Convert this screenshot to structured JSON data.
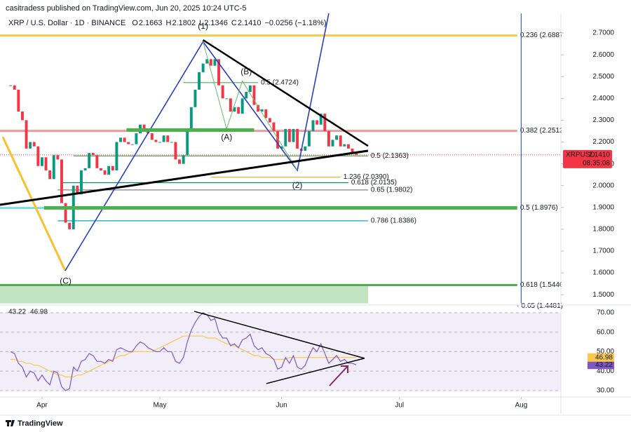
{
  "header": {
    "publisher": "casitradess published on TradingView.com, Jun 20, 2025 10:24 UTC-5",
    "symbol": "XRP / U.S. Dollar · 1D · BINANCE",
    "ohlc": [
      {
        "k": "O",
        "v": "2.1663"
      },
      {
        "k": "H",
        "v": "2.1802"
      },
      {
        "k": "L",
        "v": "2.1346"
      },
      {
        "k": "C",
        "v": "2.1410"
      }
    ],
    "change": "−0.0256 (−1.18%)"
  },
  "chart_data": [
    {
      "type": "candlestick",
      "x": [
        -8,
        -7,
        -6,
        -5,
        -4,
        -3,
        -2,
        -1,
        0,
        1,
        2,
        3,
        4,
        5,
        6,
        7,
        8,
        9,
        10,
        11,
        12,
        13,
        14,
        15,
        16,
        17,
        18,
        19,
        20,
        21,
        22,
        23,
        24,
        25,
        26,
        27,
        28,
        29,
        30,
        31,
        32,
        33,
        34,
        35,
        36,
        37,
        38,
        39,
        40,
        41,
        42,
        43,
        44,
        45,
        46,
        47,
        48,
        49,
        50,
        51,
        52,
        53,
        54,
        55,
        56,
        57,
        58,
        59,
        60,
        61,
        62,
        63,
        64,
        65,
        66,
        67,
        68,
        69,
        70,
        71,
        72,
        73,
        74,
        75,
        76,
        77,
        78,
        79,
        80
      ],
      "close": [
        2.46,
        2.44,
        2.34,
        2.3,
        2.17,
        2.2,
        2.18,
        2.09,
        2.13,
        2.07,
        2.03,
        2.14,
        2.12,
        1.92,
        1.83,
        1.8,
        2.0,
        1.96,
        2.07,
        2.08,
        2.15,
        2.14,
        2.08,
        2.07,
        2.05,
        2.09,
        2.07,
        2.2,
        2.22,
        2.2,
        2.19,
        2.19,
        2.24,
        2.28,
        2.26,
        2.24,
        2.21,
        2.2,
        2.2,
        2.23,
        2.2,
        2.2,
        2.12,
        2.1,
        2.14,
        2.26,
        2.36,
        2.44,
        2.52,
        2.56,
        2.58,
        2.55,
        2.58,
        2.46,
        2.4,
        2.4,
        2.34,
        2.36,
        2.33,
        2.4,
        2.43,
        2.46,
        2.37,
        2.34,
        2.35,
        2.31,
        2.29,
        2.25,
        2.17,
        2.18,
        2.26,
        2.2,
        2.26,
        2.17,
        2.16,
        2.18,
        2.25,
        2.3,
        2.28,
        2.33,
        2.25,
        2.18,
        2.21,
        2.23,
        2.18,
        2.19,
        2.17,
        2.15,
        2.141
      ],
      "up_color": "#089981",
      "down_color": "#f23645",
      "xlim": [
        -10.7,
        132.1
      ],
      "xticks": [
        {
          "value": 0,
          "label": "Apr"
        },
        {
          "value": 30,
          "label": "May"
        },
        {
          "value": 61,
          "label": "Jun"
        },
        {
          "value": 91,
          "label": "Jul"
        },
        {
          "value": 122,
          "label": "Aug"
        }
      ],
      "ylim": [
        1.462,
        2.787
      ],
      "yticks": [
        {
          "value": 2.7,
          "label": "2.7000"
        },
        {
          "value": 2.6,
          "label": "2.6000"
        },
        {
          "value": 2.5,
          "label": "2.5000"
        },
        {
          "value": 2.4,
          "label": "2.4000"
        },
        {
          "value": 2.3,
          "label": "2.3000"
        },
        {
          "value": 2.2,
          "label": "2.2000"
        },
        {
          "value": 2.1,
          "label": "2.1000"
        },
        {
          "value": 2.0,
          "label": "2.0000"
        },
        {
          "value": 1.9,
          "label": "1.9000"
        },
        {
          "value": 1.8,
          "label": "1.8000"
        },
        {
          "value": 1.7,
          "label": "1.7000"
        },
        {
          "value": 1.6,
          "label": "1.6000"
        },
        {
          "value": 1.5,
          "label": "1.5000"
        }
      ],
      "last_price": {
        "symbol": "XRPUSD",
        "value": 2.141,
        "label": "2.1410",
        "countdown": "08:35:08",
        "color": "#f23645"
      },
      "levels": [
        {
          "label": "0.236 (2.6887)",
          "value": 2.6887,
          "color": "#f9c74f",
          "from": -10.7,
          "to": 121,
          "width": 3
        },
        {
          "label": "0.5 (2.4724)",
          "value": 2.4724,
          "color": "#4caf50",
          "from": 36,
          "to": 55,
          "width": 1.2
        },
        {
          "label": "0.382 (2.2512)",
          "value": 2.2512,
          "color": "#ef9a9a",
          "from": -10.7,
          "to": 121,
          "width": 3
        },
        {
          "label": "0.5 (2.1363)",
          "value": 2.1363,
          "color": "#43a047",
          "from": 8,
          "to": 83,
          "width": 1.2
        },
        {
          "label": "1.236 (2.0390)",
          "value": 2.039,
          "color": "#f9a825",
          "from": 43,
          "to": 76,
          "width": 1.2
        },
        {
          "label": "0.618 (2.0135)",
          "value": 2.0135,
          "color": "#00897b",
          "from": 5,
          "to": 78,
          "width": 1.2
        },
        {
          "label": "0.65 (1.9802)",
          "value": 1.9802,
          "color": "#616161",
          "from": 4,
          "to": 83,
          "width": 1
        },
        {
          "label": "0.5 (1.8976)",
          "value": 1.8976,
          "color": "#80deea",
          "from": -10.7,
          "to": 121,
          "width": 3
        },
        {
          "label": "0.786 (1.8386)",
          "value": 1.8386,
          "color": "#00acc1",
          "from": 4,
          "to": 83,
          "width": 1.2
        },
        {
          "label": "0.618 (1.5440)",
          "value": 1.544,
          "color": "#4caf50",
          "from": -10.7,
          "to": 121,
          "width": 3
        },
        {
          "label": "0.65 (1.4481)",
          "value": 1.4481,
          "color": "#3f51b5",
          "from": 121,
          "to": 121.3,
          "width": 1
        }
      ],
      "trendlines": [
        {
          "color": "#fbc02d",
          "width": 3,
          "points": [
            [
              -10,
              2.224
            ],
            [
              5.9,
              1.61
            ]
          ]
        },
        {
          "color": "#2a3fbf",
          "width": 1.6,
          "points": [
            [
              5.9,
              1.61
            ],
            [
              41,
              2.66
            ],
            [
              65,
              2.07
            ],
            [
              73,
              2.79
            ]
          ]
        },
        {
          "color": "#66bb6a",
          "width": 1,
          "points": [
            [
              41,
              2.66
            ],
            [
              47,
              2.26
            ],
            [
              51,
              2.48
            ],
            [
              65,
              2.07
            ]
          ]
        },
        {
          "color": "#4caf50",
          "width": 5,
          "points": [
            [
              0.5,
              1.898
            ],
            [
              121,
              1.898
            ]
          ]
        },
        {
          "color": "#4caf50",
          "width": 5,
          "points": [
            [
              21.5,
              2.255
            ],
            [
              54,
              2.255
            ]
          ]
        },
        {
          "color": "#2962ff",
          "width": 1.2,
          "points": [
            [
              122,
              2.79
            ],
            [
              122,
              1.46
            ]
          ]
        },
        {
          "color": "#000000",
          "width": 3,
          "points": [
            [
              -10.7,
              1.912
            ],
            [
              83,
              2.16
            ]
          ]
        },
        {
          "color": "#000000",
          "width": 2.5,
          "points": [
            [
              41,
              2.668
            ],
            [
              83,
              2.182
            ]
          ]
        }
      ],
      "zones": [
        {
          "from": -10.7,
          "to": 83,
          "top": 1.549,
          "bottom": 1.46,
          "color": "rgba(76,175,80,0.35)"
        }
      ],
      "wave_labels": [
        {
          "text": "(1)",
          "x": 41,
          "price": 2.73,
          "color": "#1e3fbf"
        },
        {
          "text": "(B)",
          "x": 52,
          "price": 2.52,
          "color": "#4caf50"
        },
        {
          "text": "(A)",
          "x": 47,
          "price": 2.22,
          "color": "#4caf50"
        },
        {
          "text": "(2)",
          "x": 65,
          "price": 2.0,
          "color": "#2a3fbf"
        },
        {
          "text": "(C)",
          "x": 6,
          "price": 1.56,
          "color": "#f9a825"
        }
      ]
    },
    {
      "type": "line",
      "x": [
        -8,
        -7,
        -6,
        -5,
        -4,
        -3,
        -2,
        -1,
        0,
        1,
        2,
        3,
        4,
        5,
        6,
        7,
        8,
        9,
        10,
        11,
        12,
        13,
        14,
        15,
        16,
        17,
        18,
        19,
        20,
        21,
        22,
        23,
        24,
        25,
        26,
        27,
        28,
        29,
        30,
        31,
        32,
        33,
        34,
        35,
        36,
        37,
        38,
        39,
        40,
        41,
        42,
        43,
        44,
        45,
        46,
        47,
        48,
        49,
        50,
        51,
        52,
        53,
        54,
        55,
        56,
        57,
        58,
        59,
        60,
        61,
        62,
        63,
        64,
        65,
        66,
        67,
        68,
        69,
        70,
        71,
        72,
        73,
        74,
        75,
        76,
        77,
        78,
        79,
        80
      ],
      "series": [
        {
          "color": "#7e57c2",
          "values": [
            50,
            49,
            44,
            42,
            37,
            40,
            39,
            35,
            38,
            35,
            33,
            40,
            39,
            32,
            30,
            31,
            42,
            40,
            45,
            46,
            49,
            48,
            45,
            45,
            44,
            46,
            45,
            51,
            52,
            51,
            50,
            50,
            53,
            55,
            54,
            52,
            51,
            50,
            50,
            52,
            50,
            50,
            45,
            44,
            47,
            55,
            61,
            65,
            68,
            70,
            69,
            66,
            67,
            60,
            57,
            57,
            53,
            54,
            52,
            56,
            57,
            59,
            53,
            51,
            52,
            49,
            48,
            46,
            41,
            42,
            47,
            44,
            48,
            42,
            41,
            43,
            48,
            52,
            50,
            54,
            49,
            44,
            46,
            48,
            45,
            46,
            44,
            44,
            43.22
          ]
        },
        {
          "color": "#f9c74f",
          "values": [
            46,
            46,
            45,
            45,
            44,
            44,
            43,
            43,
            42,
            41,
            40,
            39,
            38,
            38,
            37,
            37,
            37,
            38,
            38,
            39,
            40,
            41,
            42,
            43,
            44,
            45,
            46,
            47,
            48,
            48,
            49,
            50,
            50,
            50,
            50,
            50,
            50,
            51,
            52,
            53,
            54,
            55,
            56,
            57,
            58,
            58,
            58,
            58,
            58,
            58,
            57,
            57,
            57,
            56,
            55,
            54,
            54,
            53,
            52,
            51,
            50,
            49,
            48,
            48,
            47,
            47,
            47,
            46,
            46,
            46,
            46,
            47,
            47,
            47,
            47,
            47,
            47,
            47,
            47,
            47,
            47,
            47,
            47,
            47,
            47,
            47,
            47,
            47,
            46.98
          ]
        }
      ],
      "xlim": [
        -10.7,
        132.1
      ],
      "ylim": [
        27.1,
        73.2
      ],
      "yticks": [
        {
          "value": 70,
          "label": "70.00"
        },
        {
          "value": 60,
          "label": "60.00"
        },
        {
          "value": 50,
          "label": "50.00"
        },
        {
          "value": 40,
          "label": "40.00"
        },
        {
          "value": 30,
          "label": "30.00"
        }
      ],
      "band": [
        30,
        70
      ],
      "trendlines": [
        {
          "color": "#000000",
          "width": 1.5,
          "points": [
            [
              38.75,
              70.7
            ],
            [
              82.1,
              46.6
            ]
          ]
        },
        {
          "color": "#000000",
          "width": 1.5,
          "points": [
            [
              57.1,
              33.6
            ],
            [
              82.1,
              46.6
            ]
          ]
        }
      ]
    }
  ],
  "footer": {
    "brand": "TradingView"
  }
}
